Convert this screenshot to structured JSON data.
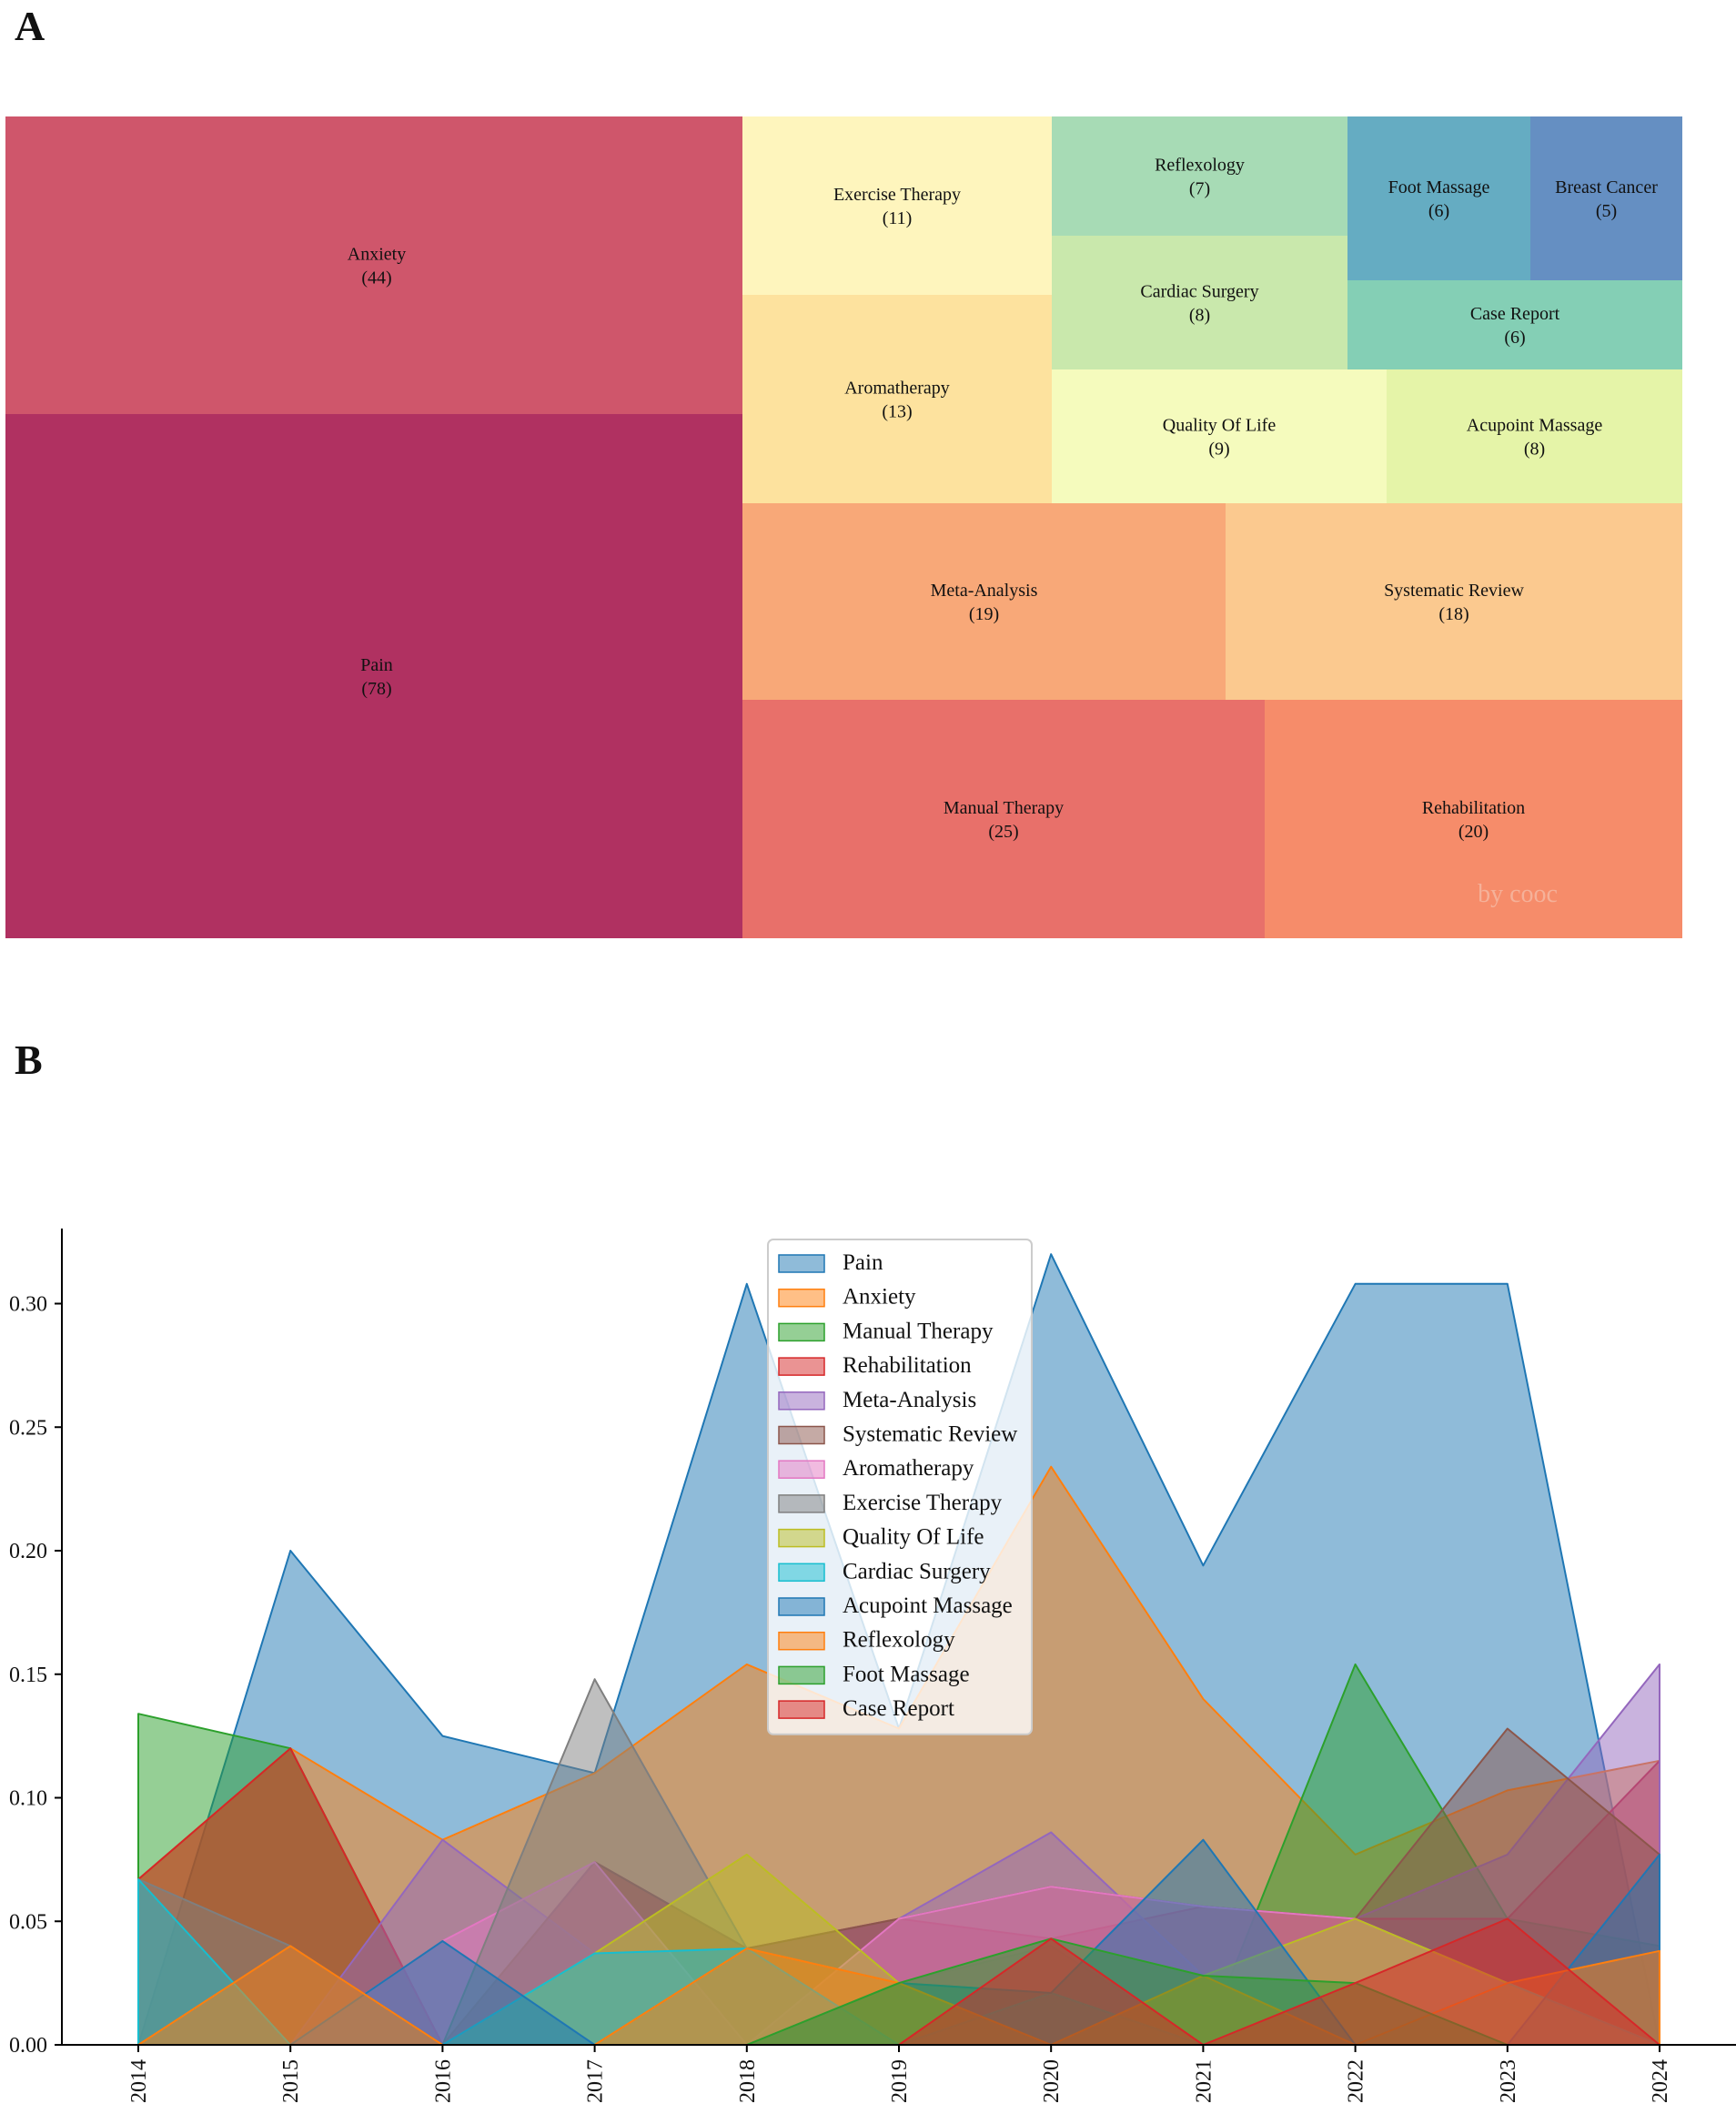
{
  "panels": {
    "a": "A",
    "b": "B"
  },
  "chart_data": [
    {
      "type": "treemap",
      "panel": "A",
      "watermark": "by cooc",
      "items": [
        {
          "label": "Pain",
          "count": "(78)",
          "value": 78,
          "color": "#b03161"
        },
        {
          "label": "Anxiety",
          "count": "(44)",
          "value": 44,
          "color": "#cf566b"
        },
        {
          "label": "Manual Therapy",
          "count": "(25)",
          "value": 25,
          "color": "#e8706a"
        },
        {
          "label": "Rehabilitation",
          "count": "(20)",
          "value": 20,
          "color": "#f68c6a"
        },
        {
          "label": "Meta-Analysis",
          "count": "(19)",
          "value": 19,
          "color": "#f8a878"
        },
        {
          "label": "Systematic Review",
          "count": "(18)",
          "value": 18,
          "color": "#fbc98f"
        },
        {
          "label": "Aromatherapy",
          "count": "(13)",
          "value": 13,
          "color": "#fde29e"
        },
        {
          "label": "Exercise Therapy",
          "count": "(11)",
          "value": 11,
          "color": "#fef5bd"
        },
        {
          "label": "Quality Of Life",
          "count": "(9)",
          "value": 9,
          "color": "#f5fbbd"
        },
        {
          "label": "Acupoint Massage",
          "count": "(8)",
          "value": 8,
          "color": "#e5f4a8"
        },
        {
          "label": "Cardiac Surgery",
          "count": "(8)",
          "value": 8,
          "color": "#c9e8ac"
        },
        {
          "label": "Reflexology",
          "count": "(7)",
          "value": 7,
          "color": "#a7dbb5"
        },
        {
          "label": "Case Report",
          "count": "(6)",
          "value": 6,
          "color": "#84cfb5"
        },
        {
          "label": "Foot Massage",
          "count": "(6)",
          "value": 6,
          "color": "#65acc2"
        },
        {
          "label": "Breast Cancer",
          "count": "(5)",
          "value": 5,
          "color": "#658fc2"
        }
      ]
    },
    {
      "type": "area",
      "panel": "B",
      "x": [
        2014,
        2015,
        2016,
        2017,
        2018,
        2019,
        2020,
        2021,
        2022,
        2023,
        2024
      ],
      "xticks": [
        "2014",
        "2015",
        "2016",
        "2017",
        "2018",
        "2019",
        "2020",
        "2021",
        "2022",
        "2023",
        "2024"
      ],
      "yticks": [
        "0.00",
        "0.05",
        "0.10",
        "0.15",
        "0.20",
        "0.25",
        "0.30"
      ],
      "ylim": [
        0,
        0.335
      ],
      "legend_position": "top-center",
      "series": [
        {
          "name": "Pain",
          "color": "#1f77b4",
          "values": [
            0.0,
            0.2,
            0.125,
            0.11,
            0.308,
            0.128,
            0.32,
            0.194,
            0.308,
            0.308,
            0.0
          ]
        },
        {
          "name": "Anxiety",
          "color": "#ff7f0e",
          "values": [
            0.067,
            0.12,
            0.083,
            0.11,
            0.154,
            0.128,
            0.234,
            0.14,
            0.077,
            0.103,
            0.115
          ]
        },
        {
          "name": "Manual Therapy",
          "color": "#2ca02c",
          "values": [
            0.134,
            0.12,
            0.0,
            0.0,
            0.0,
            0.025,
            0.04,
            0.0,
            0.154,
            0.051,
            0.04
          ]
        },
        {
          "name": "Rehabilitation",
          "color": "#d62728",
          "values": [
            0.067,
            0.12,
            0.0,
            0.074,
            0.039,
            0.051,
            0.043,
            0.056,
            0.051,
            0.051,
            0.115
          ]
        },
        {
          "name": "Meta-Analysis",
          "color": "#9467bd",
          "values": [
            0.0,
            0.0,
            0.083,
            0.037,
            0.039,
            0.051,
            0.086,
            0.028,
            0.051,
            0.077,
            0.154
          ]
        },
        {
          "name": "Systematic Review",
          "color": "#8c564b",
          "values": [
            0.0,
            0.04,
            0.0,
            0.074,
            0.039,
            0.051,
            0.064,
            0.056,
            0.051,
            0.128,
            0.077
          ]
        },
        {
          "name": "Aromatherapy",
          "color": "#e377c2",
          "values": [
            0.0,
            0.0,
            0.042,
            0.074,
            0.0,
            0.051,
            0.064,
            0.056,
            0.051,
            0.025,
            0.0
          ]
        },
        {
          "name": "Exercise Therapy",
          "color": "#7f7f7f",
          "values": [
            0.067,
            0.04,
            0.0,
            0.148,
            0.039,
            0.025,
            0.021,
            0.0,
            0.0,
            0.0,
            0.0
          ]
        },
        {
          "name": "Quality Of Life",
          "color": "#bcbd22",
          "values": [
            0.0,
            0.0,
            0.0,
            0.037,
            0.077,
            0.025,
            0.0,
            0.028,
            0.051,
            0.025,
            0.0
          ]
        },
        {
          "name": "Cardiac Surgery",
          "color": "#17becf",
          "values": [
            0.067,
            0.0,
            0.0,
            0.037,
            0.039,
            0.0,
            0.021,
            0.0,
            0.0,
            0.025,
            0.0
          ]
        },
        {
          "name": "Acupoint Massage",
          "color": "#1f77b4",
          "values": [
            0.0,
            0.0,
            0.042,
            0.0,
            0.0,
            0.025,
            0.021,
            0.083,
            0.0,
            0.0,
            0.077
          ]
        },
        {
          "name": "Reflexology",
          "color": "#ff7f0e",
          "values": [
            0.0,
            0.04,
            0.0,
            0.0,
            0.039,
            0.025,
            0.0,
            0.028,
            0.0,
            0.025,
            0.038
          ]
        },
        {
          "name": "Foot Massage",
          "color": "#2ca02c",
          "values": [
            0.0,
            0.0,
            0.0,
            0.0,
            0.0,
            0.025,
            0.043,
            0.028,
            0.025,
            0.0,
            0.0
          ]
        },
        {
          "name": "Case Report",
          "color": "#d62728",
          "values": [
            0.0,
            0.0,
            0.0,
            0.0,
            0.0,
            0.0,
            0.043,
            0.0,
            0.025,
            0.051,
            0.0
          ]
        }
      ]
    }
  ]
}
